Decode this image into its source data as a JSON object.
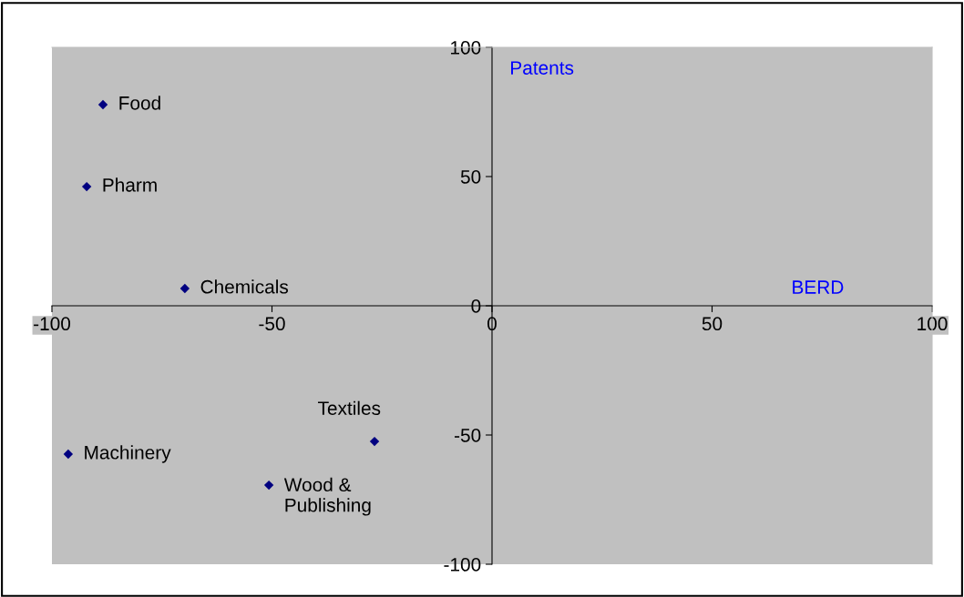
{
  "chart_data": {
    "type": "scatter",
    "xlabel": "BERD",
    "ylabel": "Patents",
    "x": [
      -88.4,
      -92.1,
      -69.8,
      -96.3,
      -50.7,
      -26.7
    ],
    "values": [
      77.8,
      46.1,
      6.7,
      -57.4,
      -69.4,
      -52.5
    ],
    "color": "#000080",
    "marker": "diamond",
    "xlim": [
      -100,
      100
    ],
    "ylim": [
      -100,
      100
    ],
    "xticks": [
      -100,
      -50,
      0,
      50,
      100
    ],
    "yticks": [
      -100,
      -50,
      0,
      50,
      100
    ],
    "grid": false,
    "legend": false,
    "annotations": [
      {
        "text": "Food",
        "x": -88.4,
        "y": 77.8
      },
      {
        "text": "Pharm",
        "x": -92.1,
        "y": 46.1
      },
      {
        "text": "Chemicals",
        "x": -69.8,
        "y": 6.7
      },
      {
        "text": "Machinery",
        "x": -96.3,
        "y": -57.4
      },
      {
        "text": "Wood &\nPublishing",
        "x": -50.7,
        "y": -69.4
      },
      {
        "text": "Textiles",
        "x": -26.7,
        "y": -52.5
      }
    ]
  }
}
